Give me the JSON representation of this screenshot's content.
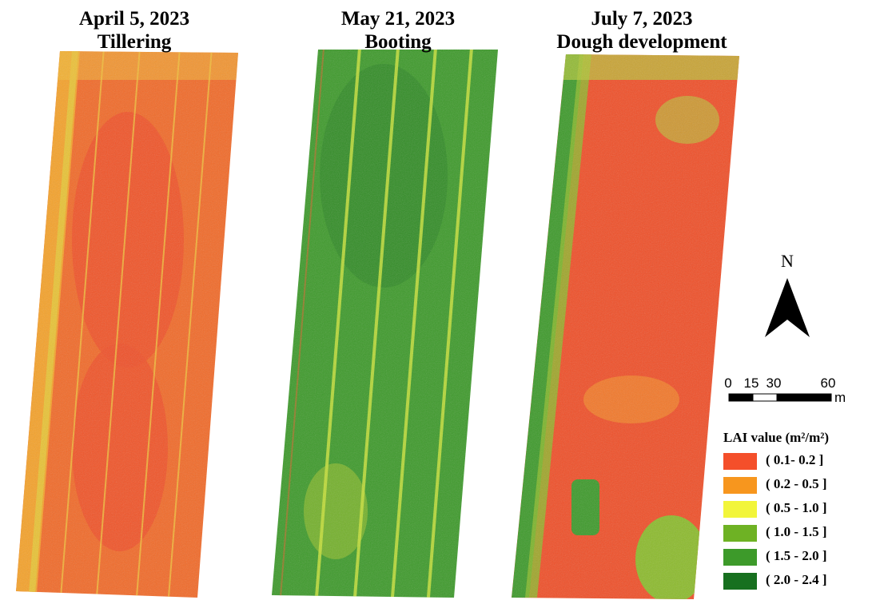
{
  "panels": [
    {
      "date": "April 5, 2023",
      "stage": "Tillering"
    },
    {
      "date": "May 21, 2023",
      "stage": "Booting"
    },
    {
      "date": "July 7, 2023",
      "stage": "Dough development"
    }
  ],
  "north": "N",
  "scale": {
    "labels": [
      "0",
      "15",
      "30",
      "60"
    ],
    "unit": "m"
  },
  "legend": {
    "title": "LAI value (m²/m²)",
    "items": [
      {
        "label": "( 0.1- 0.2 ]",
        "color": "#f44f2a"
      },
      {
        "label": "( 0.2 - 0.5 ]",
        "color": "#f7961e"
      },
      {
        "label": "( 0.5 - 1.0 ]",
        "color": "#f2f53a"
      },
      {
        "label": "( 1.0 - 1.5 ]",
        "color": "#6eb224"
      },
      {
        "label": "( 1.5 - 2.0 ]",
        "color": "#3d9a2a"
      },
      {
        "label": "( 2.0 - 2.4 ]",
        "color": "#17701f"
      }
    ]
  }
}
